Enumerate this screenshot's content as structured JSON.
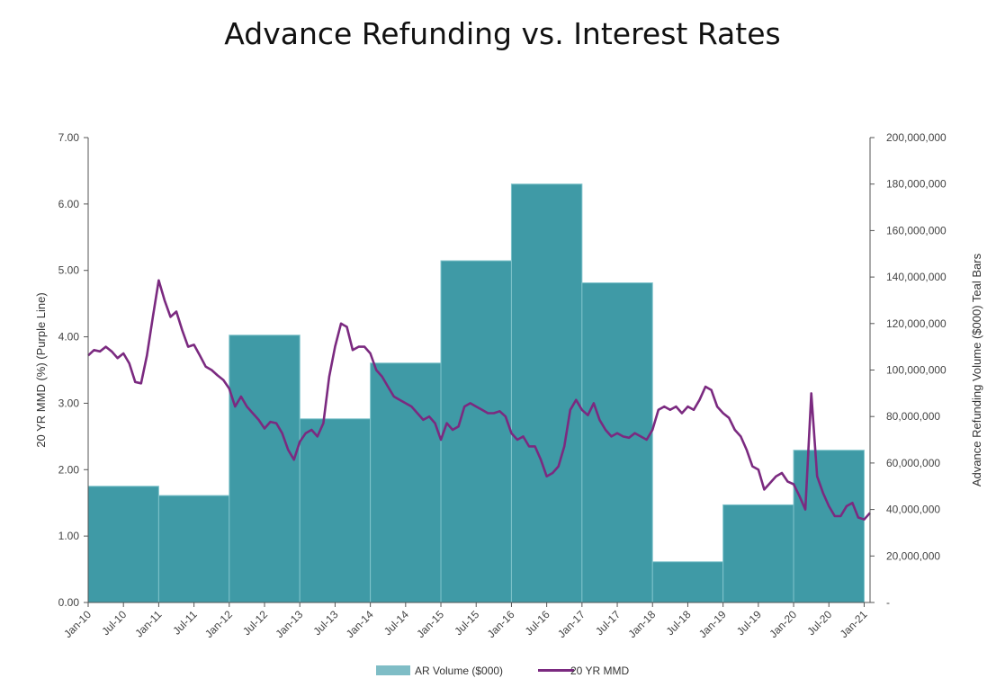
{
  "chart_data": {
    "type": "bar+line",
    "title": "Advance Refunding vs. Interest Rates",
    "y_left_label": "20 YR MMD (%) (Purple Line)",
    "y_right_label": "Advance Refunding Volume ($000) Teal Bars",
    "y_left_range": [
      0,
      7
    ],
    "y_left_ticks": [
      "0.00",
      "1.00",
      "2.00",
      "3.00",
      "4.00",
      "5.00",
      "6.00",
      "7.00"
    ],
    "y_right_range": [
      0,
      200000000
    ],
    "y_right_ticks": [
      "-",
      "20,000,000",
      "40,000,000",
      "60,000,000",
      "80,000,000",
      "100,000,000",
      "120,000,000",
      "140,000,000",
      "160,000,000",
      "180,000,000",
      "200,000,000"
    ],
    "x_ticks": [
      "Jan-10",
      "Jul-10",
      "Jan-11",
      "Jul-11",
      "Jan-12",
      "Jul-12",
      "Jan-13",
      "Jul-13",
      "Jan-14",
      "Jul-14",
      "Jan-15",
      "Jul-15",
      "Jan-16",
      "Jul-16",
      "Jan-17",
      "Jul-17",
      "Jan-18",
      "Jul-18",
      "Jan-19",
      "Jul-19",
      "Jan-20",
      "Jul-20",
      "Jan-21"
    ],
    "x_range": [
      "2010-01",
      "2021-02"
    ],
    "grid": false,
    "legend_position": "bottom",
    "colors": {
      "bars": "#3f9aa6",
      "bar_edge": "#7fc3cb",
      "line": "#7b2a80",
      "axis": "#555555"
    },
    "legend": [
      {
        "label": "AR Volume ($000)",
        "color": "#7fbdc6",
        "kind": "box"
      },
      {
        "label": "20 YR MMD",
        "color": "#7b2a80",
        "kind": "line"
      }
    ],
    "bars_series": {
      "name": "AR Volume ($000)",
      "periods": [
        {
          "start": "2010-01",
          "end": "2011-01",
          "value": 50000000
        },
        {
          "start": "2011-01",
          "end": "2012-01",
          "value": 46000000
        },
        {
          "start": "2012-01",
          "end": "2013-01",
          "value": 115000000
        },
        {
          "start": "2013-01",
          "end": "2014-01",
          "value": 79000000
        },
        {
          "start": "2014-01",
          "end": "2015-01",
          "value": 103000000
        },
        {
          "start": "2015-01",
          "end": "2016-01",
          "value": 147000000
        },
        {
          "start": "2016-01",
          "end": "2017-01",
          "value": 180000000
        },
        {
          "start": "2017-01",
          "end": "2018-01",
          "value": 137500000
        },
        {
          "start": "2018-01",
          "end": "2019-01",
          "value": 17500000
        },
        {
          "start": "2019-01",
          "end": "2020-01",
          "value": 42000000
        },
        {
          "start": "2020-01",
          "end": "2021-01",
          "value": 65500000
        }
      ]
    },
    "line_series": {
      "name": "20 YR MMD",
      "points": [
        [
          "2010-01",
          3.72
        ],
        [
          "2010-02",
          3.8
        ],
        [
          "2010-03",
          3.78
        ],
        [
          "2010-04",
          3.85
        ],
        [
          "2010-05",
          3.78
        ],
        [
          "2010-06",
          3.68
        ],
        [
          "2010-07",
          3.75
        ],
        [
          "2010-08",
          3.6
        ],
        [
          "2010-09",
          3.32
        ],
        [
          "2010-10",
          3.3
        ],
        [
          "2010-11",
          3.72
        ],
        [
          "2010-12",
          4.3
        ],
        [
          "2011-01",
          4.85
        ],
        [
          "2011-02",
          4.55
        ],
        [
          "2011-03",
          4.3
        ],
        [
          "2011-04",
          4.38
        ],
        [
          "2011-05",
          4.1
        ],
        [
          "2011-06",
          3.85
        ],
        [
          "2011-07",
          3.88
        ],
        [
          "2011-08",
          3.72
        ],
        [
          "2011-09",
          3.55
        ],
        [
          "2011-10",
          3.5
        ],
        [
          "2011-11",
          3.42
        ],
        [
          "2011-12",
          3.35
        ],
        [
          "2012-01",
          3.22
        ],
        [
          "2012-02",
          2.95
        ],
        [
          "2012-03",
          3.1
        ],
        [
          "2012-04",
          2.95
        ],
        [
          "2012-05",
          2.85
        ],
        [
          "2012-06",
          2.75
        ],
        [
          "2012-07",
          2.62
        ],
        [
          "2012-08",
          2.72
        ],
        [
          "2012-09",
          2.7
        ],
        [
          "2012-10",
          2.55
        ],
        [
          "2012-11",
          2.3
        ],
        [
          "2012-12",
          2.15
        ],
        [
          "2013-01",
          2.42
        ],
        [
          "2013-02",
          2.55
        ],
        [
          "2013-03",
          2.6
        ],
        [
          "2013-04",
          2.5
        ],
        [
          "2013-05",
          2.7
        ],
        [
          "2013-06",
          3.4
        ],
        [
          "2013-07",
          3.85
        ],
        [
          "2013-08",
          4.2
        ],
        [
          "2013-09",
          4.15
        ],
        [
          "2013-10",
          3.8
        ],
        [
          "2013-11",
          3.85
        ],
        [
          "2013-12",
          3.85
        ],
        [
          "2014-01",
          3.75
        ],
        [
          "2014-02",
          3.5
        ],
        [
          "2014-03",
          3.4
        ],
        [
          "2014-04",
          3.25
        ],
        [
          "2014-05",
          3.1
        ],
        [
          "2014-06",
          3.05
        ],
        [
          "2014-07",
          3.0
        ],
        [
          "2014-08",
          2.95
        ],
        [
          "2014-09",
          2.85
        ],
        [
          "2014-10",
          2.75
        ],
        [
          "2014-11",
          2.8
        ],
        [
          "2014-12",
          2.7
        ],
        [
          "2015-01",
          2.45
        ],
        [
          "2015-02",
          2.7
        ],
        [
          "2015-03",
          2.6
        ],
        [
          "2015-04",
          2.65
        ],
        [
          "2015-05",
          2.95
        ],
        [
          "2015-06",
          3.0
        ],
        [
          "2015-07",
          2.95
        ],
        [
          "2015-08",
          2.9
        ],
        [
          "2015-09",
          2.85
        ],
        [
          "2015-10",
          2.85
        ],
        [
          "2015-11",
          2.88
        ],
        [
          "2015-12",
          2.8
        ],
        [
          "2016-01",
          2.55
        ],
        [
          "2016-02",
          2.45
        ],
        [
          "2016-03",
          2.5
        ],
        [
          "2016-04",
          2.35
        ],
        [
          "2016-05",
          2.35
        ],
        [
          "2016-06",
          2.15
        ],
        [
          "2016-07",
          1.9
        ],
        [
          "2016-08",
          1.95
        ],
        [
          "2016-09",
          2.05
        ],
        [
          "2016-10",
          2.35
        ],
        [
          "2016-11",
          2.9
        ],
        [
          "2016-12",
          3.05
        ],
        [
          "2017-01",
          2.9
        ],
        [
          "2017-02",
          2.82
        ],
        [
          "2017-03",
          3.0
        ],
        [
          "2017-04",
          2.75
        ],
        [
          "2017-05",
          2.6
        ],
        [
          "2017-06",
          2.5
        ],
        [
          "2017-07",
          2.55
        ],
        [
          "2017-08",
          2.5
        ],
        [
          "2017-09",
          2.48
        ],
        [
          "2017-10",
          2.55
        ],
        [
          "2017-11",
          2.5
        ],
        [
          "2017-12",
          2.45
        ],
        [
          "2018-01",
          2.6
        ],
        [
          "2018-02",
          2.9
        ],
        [
          "2018-03",
          2.95
        ],
        [
          "2018-04",
          2.9
        ],
        [
          "2018-05",
          2.95
        ],
        [
          "2018-06",
          2.85
        ],
        [
          "2018-07",
          2.95
        ],
        [
          "2018-08",
          2.9
        ],
        [
          "2018-09",
          3.05
        ],
        [
          "2018-10",
          3.25
        ],
        [
          "2018-11",
          3.2
        ],
        [
          "2018-12",
          2.95
        ],
        [
          "2019-01",
          2.85
        ],
        [
          "2019-02",
          2.78
        ],
        [
          "2019-03",
          2.6
        ],
        [
          "2019-04",
          2.5
        ],
        [
          "2019-05",
          2.3
        ],
        [
          "2019-06",
          2.05
        ],
        [
          "2019-07",
          2.0
        ],
        [
          "2019-08",
          1.7
        ],
        [
          "2019-09",
          1.8
        ],
        [
          "2019-10",
          1.9
        ],
        [
          "2019-11",
          1.95
        ],
        [
          "2019-12",
          1.82
        ],
        [
          "2020-01",
          1.78
        ],
        [
          "2020-02",
          1.6
        ],
        [
          "2020-03",
          1.4
        ],
        [
          "2020-04",
          3.15
        ],
        [
          "2020-05",
          1.9
        ],
        [
          "2020-06",
          1.65
        ],
        [
          "2020-07",
          1.45
        ],
        [
          "2020-08",
          1.3
        ],
        [
          "2020-09",
          1.3
        ],
        [
          "2020-10",
          1.45
        ],
        [
          "2020-11",
          1.5
        ],
        [
          "2020-12",
          1.28
        ],
        [
          "2021-01",
          1.25
        ],
        [
          "2021-02",
          1.35
        ]
      ]
    }
  }
}
